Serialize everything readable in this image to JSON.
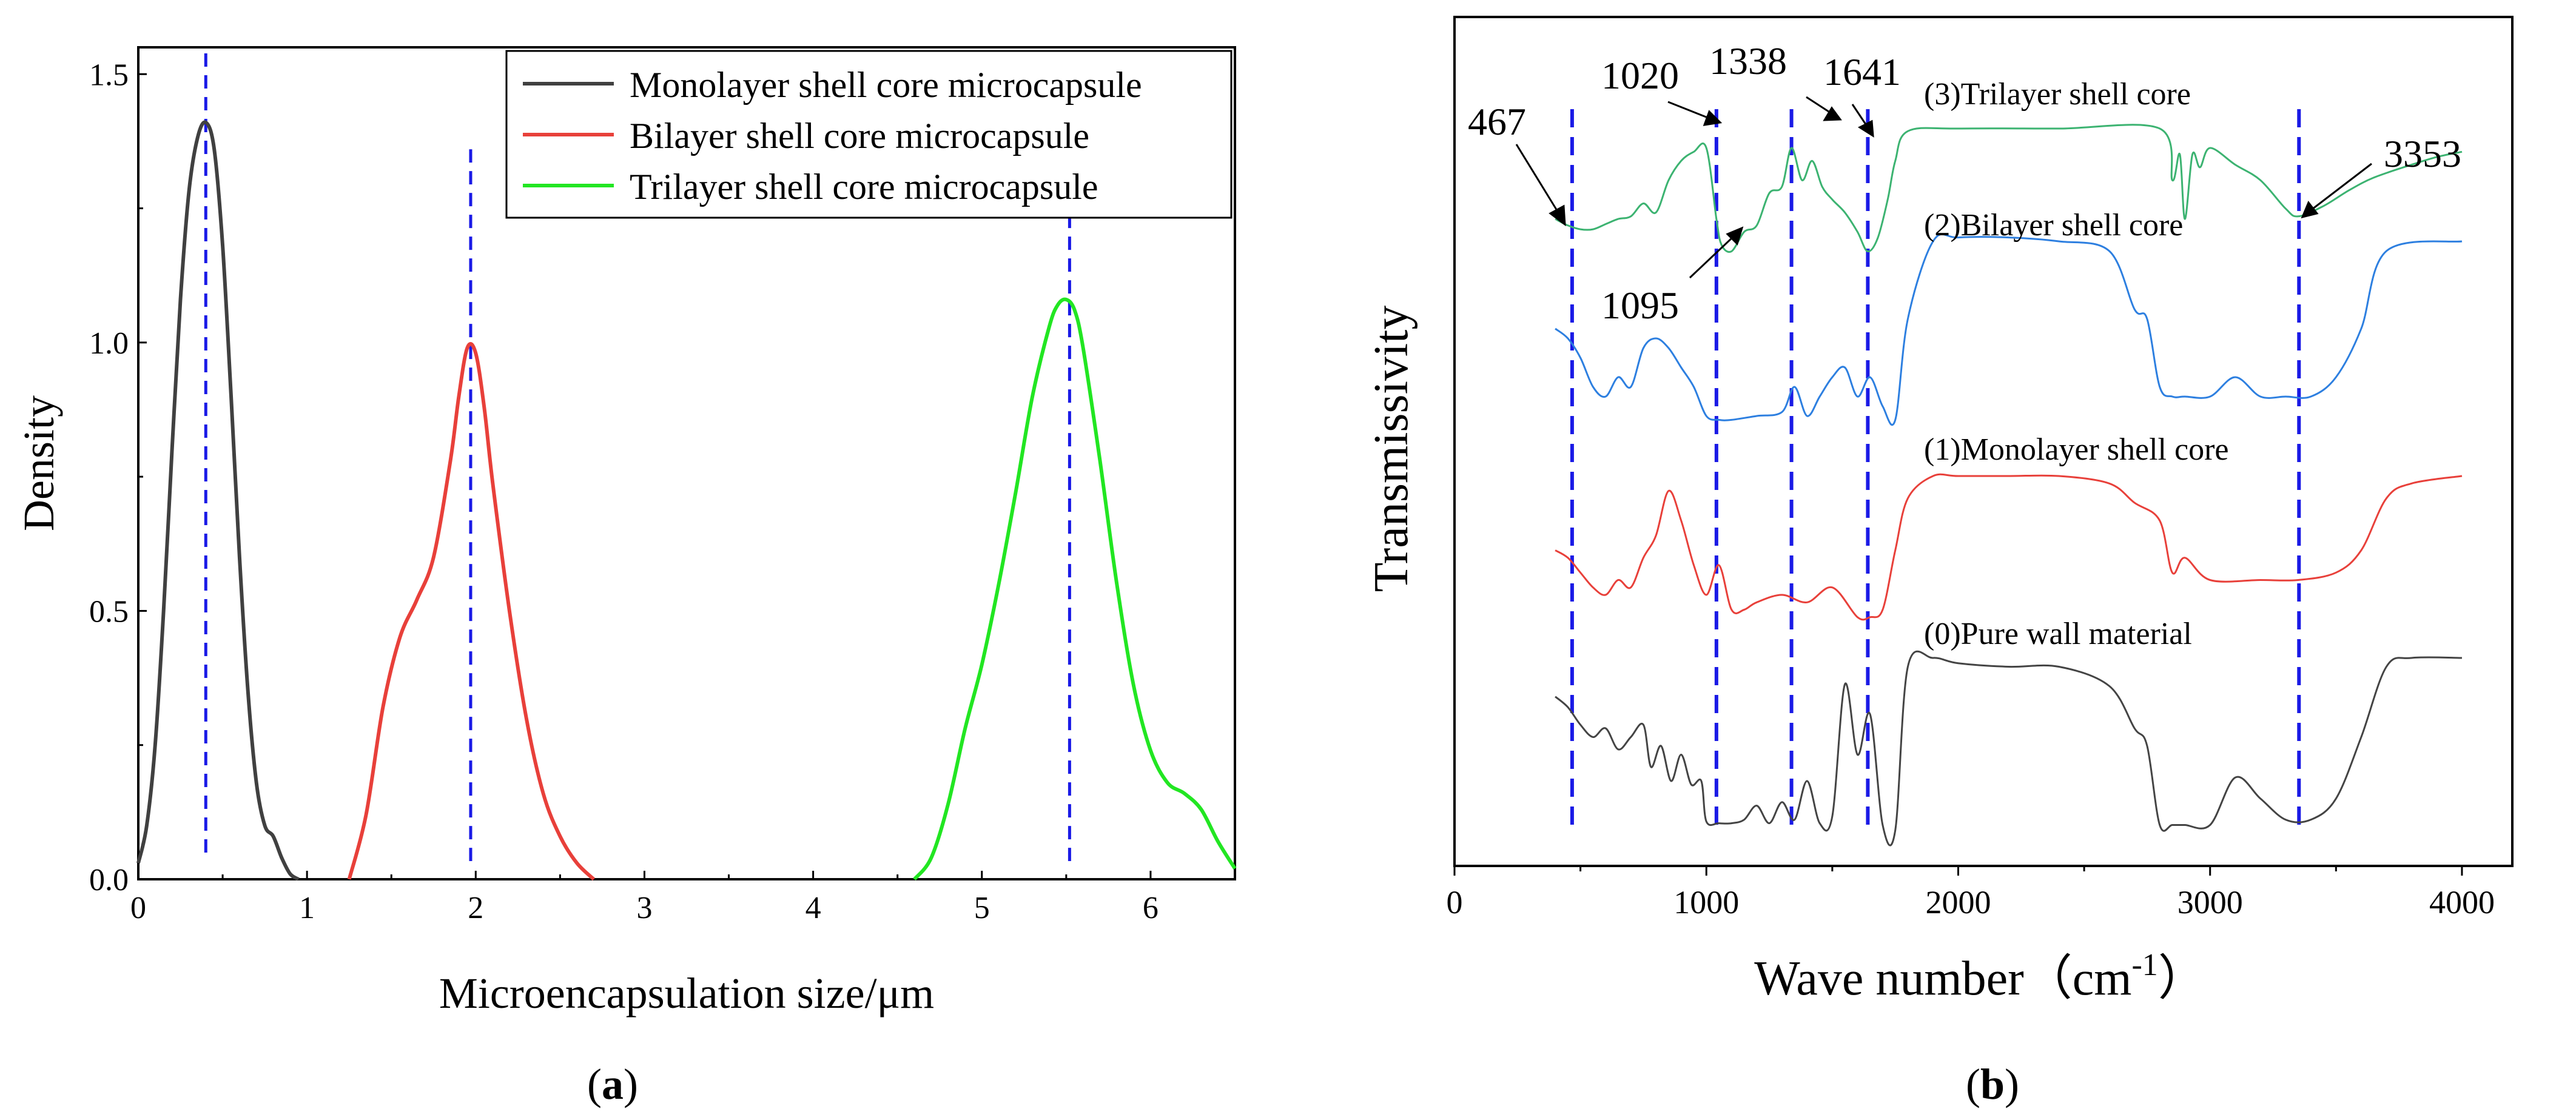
{
  "chart_data": [
    {
      "panel_label": "a",
      "type": "line",
      "xlabel": "Microencapsulation size/μm",
      "ylabel": "Density",
      "xlim": [
        0,
        6.5
      ],
      "ylim": [
        0,
        1.55
      ],
      "x_ticks": [
        "0",
        "1",
        "2",
        "3",
        "4",
        "5",
        "6"
      ],
      "y_ticks": [
        "0.0",
        "0.5",
        "1.0",
        "1.5"
      ],
      "legend_position": "top-right",
      "series": [
        {
          "name": "Monolayer shell core microcapsule",
          "color": "#404040",
          "peak": 0.4,
          "x": [
            0,
            0.05,
            0.1,
            0.15,
            0.2,
            0.25,
            0.3,
            0.35,
            0.4,
            0.45,
            0.5,
            0.55,
            0.6,
            0.65,
            0.7,
            0.75,
            0.8,
            0.85,
            0.9,
            0.95
          ],
          "y": [
            0.03,
            0.1,
            0.25,
            0.5,
            0.8,
            1.08,
            1.28,
            1.38,
            1.41,
            1.36,
            1.18,
            0.9,
            0.6,
            0.35,
            0.18,
            0.1,
            0.08,
            0.04,
            0.01,
            0.0
          ]
        },
        {
          "name": "Bilayer shell core microcapsule",
          "color": "#e8403a",
          "peak": 1.97,
          "x": [
            1.25,
            1.35,
            1.45,
            1.55,
            1.65,
            1.75,
            1.85,
            1.9,
            1.95,
            2.0,
            2.05,
            2.1,
            2.2,
            2.3,
            2.4,
            2.5,
            2.6,
            2.7
          ],
          "y": [
            0.0,
            0.12,
            0.32,
            0.45,
            0.52,
            0.6,
            0.78,
            0.9,
            0.99,
            0.98,
            0.88,
            0.74,
            0.5,
            0.3,
            0.16,
            0.08,
            0.03,
            0.0
          ]
        },
        {
          "name": "Trilayer shell core microcapsule",
          "color": "#22e622",
          "peak": 5.52,
          "x": [
            4.6,
            4.7,
            4.8,
            4.9,
            5.0,
            5.1,
            5.2,
            5.3,
            5.4,
            5.45,
            5.5,
            5.55,
            5.6,
            5.7,
            5.8,
            5.9,
            6.0,
            6.1,
            6.2,
            6.3,
            6.4,
            6.5
          ],
          "y": [
            0.0,
            0.04,
            0.14,
            0.28,
            0.4,
            0.55,
            0.72,
            0.9,
            1.03,
            1.07,
            1.08,
            1.06,
            0.99,
            0.78,
            0.55,
            0.36,
            0.24,
            0.18,
            0.16,
            0.13,
            0.07,
            0.02
          ]
        }
      ]
    },
    {
      "panel_label": "b",
      "type": "line",
      "xlabel": "Wave number（cm",
      "xlabel_sup": "-1",
      "xlabel_close": "）",
      "ylabel": "Transmissivity",
      "xlim": [
        0,
        4200
      ],
      "y_axis_values_shown": false,
      "x_ticks": [
        "0",
        "1000",
        "2000",
        "3000",
        "4000"
      ],
      "marker_lines": [
        467,
        1040,
        1338,
        1641,
        3353
      ],
      "annotations": [
        "467",
        "1020",
        "1338",
        "1641",
        "1095",
        "3353"
      ],
      "series": [
        {
          "name": "(0)Pure wall material",
          "color": "#444444",
          "x": [
            400,
            450,
            500,
            550,
            600,
            650,
            700,
            750,
            780,
            820,
            860,
            900,
            940,
            980,
            1000,
            1050,
            1100,
            1150,
            1200,
            1250,
            1300,
            1350,
            1400,
            1450,
            1500,
            1550,
            1600,
            1650,
            1700,
            1750,
            1800,
            1900,
            2000,
            2200,
            2400,
            2600,
            2700,
            2750,
            2800,
            2850,
            2900,
            3000,
            3100,
            3200,
            3300,
            3400,
            3500,
            3600,
            3700,
            3800,
            4000
          ],
          "y": [
            0.78,
            0.72,
            0.62,
            0.55,
            0.6,
            0.48,
            0.55,
            0.62,
            0.38,
            0.5,
            0.3,
            0.45,
            0.28,
            0.3,
            0.07,
            0.06,
            0.06,
            0.08,
            0.16,
            0.06,
            0.18,
            0.08,
            0.3,
            0.06,
            0.1,
            0.85,
            0.45,
            0.68,
            0.05,
            0.02,
            0.95,
            1.0,
            0.97,
            0.95,
            0.95,
            0.84,
            0.6,
            0.5,
            0.05,
            0.05,
            0.05,
            0.05,
            0.32,
            0.2,
            0.08,
            0.08,
            0.2,
            0.55,
            0.95,
            1.0,
            1.0
          ]
        },
        {
          "name": "(1)Monolayer shell core",
          "color": "#e8403a",
          "x": [
            400,
            450,
            500,
            550,
            600,
            650,
            700,
            750,
            800,
            850,
            900,
            950,
            1000,
            1050,
            1100,
            1150,
            1200,
            1300,
            1400,
            1500,
            1600,
            1650,
            1700,
            1750,
            1800,
            1900,
            2000,
            2200,
            2400,
            2600,
            2700,
            2800,
            2850,
            2900,
            3000,
            3200,
            3350,
            3500,
            3600,
            3700,
            3800,
            4000
          ],
          "y": [
            0.5,
            0.45,
            0.35,
            0.25,
            0.2,
            0.3,
            0.25,
            0.45,
            0.6,
            0.9,
            0.7,
            0.4,
            0.2,
            0.4,
            0.1,
            0.1,
            0.15,
            0.2,
            0.15,
            0.25,
            0.05,
            0.05,
            0.1,
            0.5,
            0.85,
            1.0,
            1.0,
            1.0,
            1.0,
            0.95,
            0.82,
            0.7,
            0.35,
            0.45,
            0.3,
            0.3,
            0.3,
            0.35,
            0.5,
            0.85,
            0.95,
            1.0
          ]
        },
        {
          "name": "(2)Bilayer shell core",
          "color": "#2d7fe0",
          "x": [
            400,
            450,
            500,
            550,
            600,
            650,
            700,
            750,
            800,
            850,
            900,
            950,
            1000,
            1050,
            1100,
            1200,
            1300,
            1350,
            1400,
            1450,
            1500,
            1550,
            1600,
            1650,
            1700,
            1750,
            1800,
            1900,
            2000,
            2200,
            2400,
            2600,
            2700,
            2750,
            2800,
            2850,
            2900,
            3000,
            3100,
            3200,
            3300,
            3400,
            3500,
            3600,
            3700,
            4000
          ],
          "y": [
            0.55,
            0.5,
            0.4,
            0.25,
            0.2,
            0.3,
            0.25,
            0.45,
            0.5,
            0.45,
            0.35,
            0.25,
            0.1,
            0.08,
            0.08,
            0.1,
            0.12,
            0.25,
            0.1,
            0.2,
            0.3,
            0.35,
            0.2,
            0.3,
            0.15,
            0.08,
            0.6,
            1.0,
            1.02,
            1.02,
            1.0,
            0.95,
            0.65,
            0.6,
            0.25,
            0.2,
            0.2,
            0.2,
            0.3,
            0.2,
            0.2,
            0.2,
            0.3,
            0.55,
            0.95,
            1.0
          ]
        },
        {
          "name": "(3)Trilayer shell core",
          "color": "#3cb371",
          "x": [
            400,
            450,
            500,
            550,
            600,
            650,
            700,
            750,
            800,
            850,
            900,
            950,
            1000,
            1040,
            1060,
            1100,
            1150,
            1200,
            1250,
            1300,
            1338,
            1380,
            1420,
            1460,
            1500,
            1550,
            1600,
            1640,
            1680,
            1720,
            1750,
            1800,
            2000,
            2400,
            2800,
            2850,
            2880,
            2900,
            2930,
            2960,
            3000,
            3100,
            3200,
            3300,
            3350,
            3450,
            3550,
            3650,
            3800,
            3900,
            4000
          ],
          "y": [
            0.3,
            0.25,
            0.22,
            0.22,
            0.26,
            0.3,
            0.32,
            0.42,
            0.35,
            0.6,
            0.75,
            0.82,
            0.85,
            0.3,
            0.1,
            0.05,
            0.2,
            0.25,
            0.5,
            0.55,
            0.85,
            0.6,
            0.75,
            0.55,
            0.45,
            0.35,
            0.2,
            0.05,
            0.15,
            0.45,
            0.75,
            0.98,
            1.0,
            1.0,
            1.0,
            0.6,
            0.8,
            0.3,
            0.8,
            0.7,
            0.85,
            0.72,
            0.6,
            0.38,
            0.32,
            0.4,
            0.52,
            0.62,
            0.72,
            0.78,
            0.82
          ]
        }
      ]
    }
  ],
  "legend_a": [
    "Monolayer shell core microcapsule",
    "Bilayer shell core microcapsule",
    "Trilayer shell core microcapsule"
  ]
}
